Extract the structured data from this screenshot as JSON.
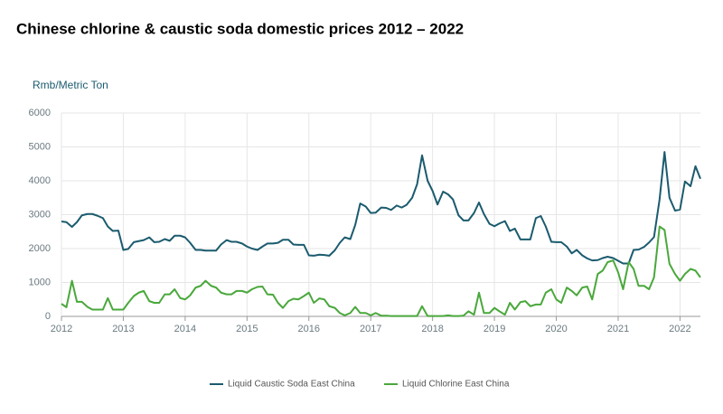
{
  "chart_data": {
    "type": "line",
    "title": "Chinese chlorine & caustic soda domestic prices 2012 – 2022",
    "y_label": "Rmb/Metric Ton",
    "x": [
      2012,
      2012.08,
      2012.17,
      2012.25,
      2012.33,
      2012.42,
      2012.5,
      2012.58,
      2012.67,
      2012.75,
      2012.83,
      2012.92,
      2013,
      2013.08,
      2013.17,
      2013.25,
      2013.33,
      2013.42,
      2013.5,
      2013.58,
      2013.67,
      2013.75,
      2013.83,
      2013.92,
      2014,
      2014.08,
      2014.17,
      2014.25,
      2014.33,
      2014.42,
      2014.5,
      2014.58,
      2014.67,
      2014.75,
      2014.83,
      2014.92,
      2015,
      2015.08,
      2015.17,
      2015.25,
      2015.33,
      2015.42,
      2015.5,
      2015.58,
      2015.67,
      2015.75,
      2015.83,
      2015.92,
      2016,
      2016.08,
      2016.17,
      2016.25,
      2016.33,
      2016.42,
      2016.5,
      2016.58,
      2016.67,
      2016.75,
      2016.83,
      2016.92,
      2017,
      2017.08,
      2017.17,
      2017.25,
      2017.33,
      2017.42,
      2017.5,
      2017.58,
      2017.67,
      2017.75,
      2017.83,
      2017.92,
      2018,
      2018.08,
      2018.17,
      2018.25,
      2018.33,
      2018.42,
      2018.5,
      2018.58,
      2018.67,
      2018.75,
      2018.83,
      2018.92,
      2019,
      2019.08,
      2019.17,
      2019.25,
      2019.33,
      2019.42,
      2019.5,
      2019.58,
      2019.67,
      2019.75,
      2019.83,
      2019.92,
      2020,
      2020.08,
      2020.17,
      2020.25,
      2020.33,
      2020.42,
      2020.5,
      2020.58,
      2020.67,
      2020.75,
      2020.83,
      2020.92,
      2021,
      2021.08,
      2021.17,
      2021.25,
      2021.33,
      2021.42,
      2021.5,
      2021.58,
      2021.67,
      2021.75,
      2021.83,
      2021.92,
      2022,
      2022.08,
      2022.17,
      2022.25,
      2022.33
    ],
    "series": [
      {
        "name": "Liquid Caustic Soda East China",
        "color": "#1b5b6e",
        "values": [
          2800,
          2780,
          2640,
          2780,
          2980,
          3020,
          3020,
          2970,
          2900,
          2650,
          2520,
          2530,
          1960,
          1990,
          2190,
          2220,
          2250,
          2330,
          2190,
          2200,
          2280,
          2230,
          2380,
          2380,
          2330,
          2170,
          1960,
          1960,
          1940,
          1940,
          1940,
          2120,
          2250,
          2200,
          2200,
          2150,
          2060,
          2000,
          1960,
          2060,
          2150,
          2150,
          2170,
          2260,
          2260,
          2120,
          2110,
          2110,
          1800,
          1790,
          1820,
          1810,
          1790,
          1950,
          2170,
          2330,
          2280,
          2700,
          3330,
          3240,
          3050,
          3060,
          3210,
          3200,
          3140,
          3270,
          3210,
          3290,
          3500,
          3900,
          4750,
          4000,
          3700,
          3300,
          3680,
          3600,
          3450,
          2980,
          2830,
          2830,
          3050,
          3360,
          3020,
          2730,
          2660,
          2740,
          2810,
          2520,
          2590,
          2270,
          2270,
          2270,
          2900,
          2960,
          2650,
          2200,
          2190,
          2190,
          2060,
          1860,
          1960,
          1800,
          1710,
          1650,
          1660,
          1720,
          1760,
          1720,
          1640,
          1560,
          1560,
          1960,
          1970,
          2050,
          2180,
          2340,
          3450,
          4850,
          3500,
          3120,
          3150,
          3980,
          3840,
          4430,
          4060
        ]
      },
      {
        "name": "Liquid Chlorine East China",
        "color": "#4aa83c",
        "values": [
          370,
          270,
          1050,
          430,
          430,
          280,
          200,
          200,
          200,
          540,
          200,
          200,
          200,
          400,
          600,
          700,
          750,
          450,
          400,
          400,
          650,
          650,
          800,
          540,
          500,
          620,
          850,
          900,
          1050,
          900,
          850,
          700,
          650,
          650,
          750,
          750,
          700,
          800,
          870,
          880,
          650,
          640,
          400,
          250,
          450,
          520,
          500,
          600,
          700,
          400,
          530,
          500,
          300,
          250,
          100,
          30,
          100,
          280,
          100,
          100,
          30,
          100,
          20,
          20,
          10,
          10,
          10,
          10,
          10,
          10,
          300,
          10,
          10,
          10,
          10,
          30,
          10,
          10,
          20,
          150,
          50,
          700,
          100,
          100,
          250,
          150,
          50,
          400,
          200,
          420,
          450,
          300,
          350,
          350,
          700,
          800,
          500,
          400,
          850,
          750,
          620,
          850,
          880,
          500,
          1250,
          1350,
          1600,
          1650,
          1300,
          800,
          1600,
          1400,
          900,
          900,
          800,
          1150,
          2650,
          2550,
          1550,
          1250,
          1050,
          1250,
          1400,
          1350,
          1150
        ]
      }
    ],
    "xlim": [
      2012,
      2022.33
    ],
    "xticks": [
      2012,
      2013,
      2014,
      2015,
      2016,
      2017,
      2018,
      2019,
      2020,
      2021,
      2022
    ],
    "ylim": [
      0,
      6000
    ],
    "yticks": [
      0,
      1000,
      2000,
      3000,
      4000,
      5000,
      6000
    ],
    "grid": true,
    "legend": "bottom"
  }
}
